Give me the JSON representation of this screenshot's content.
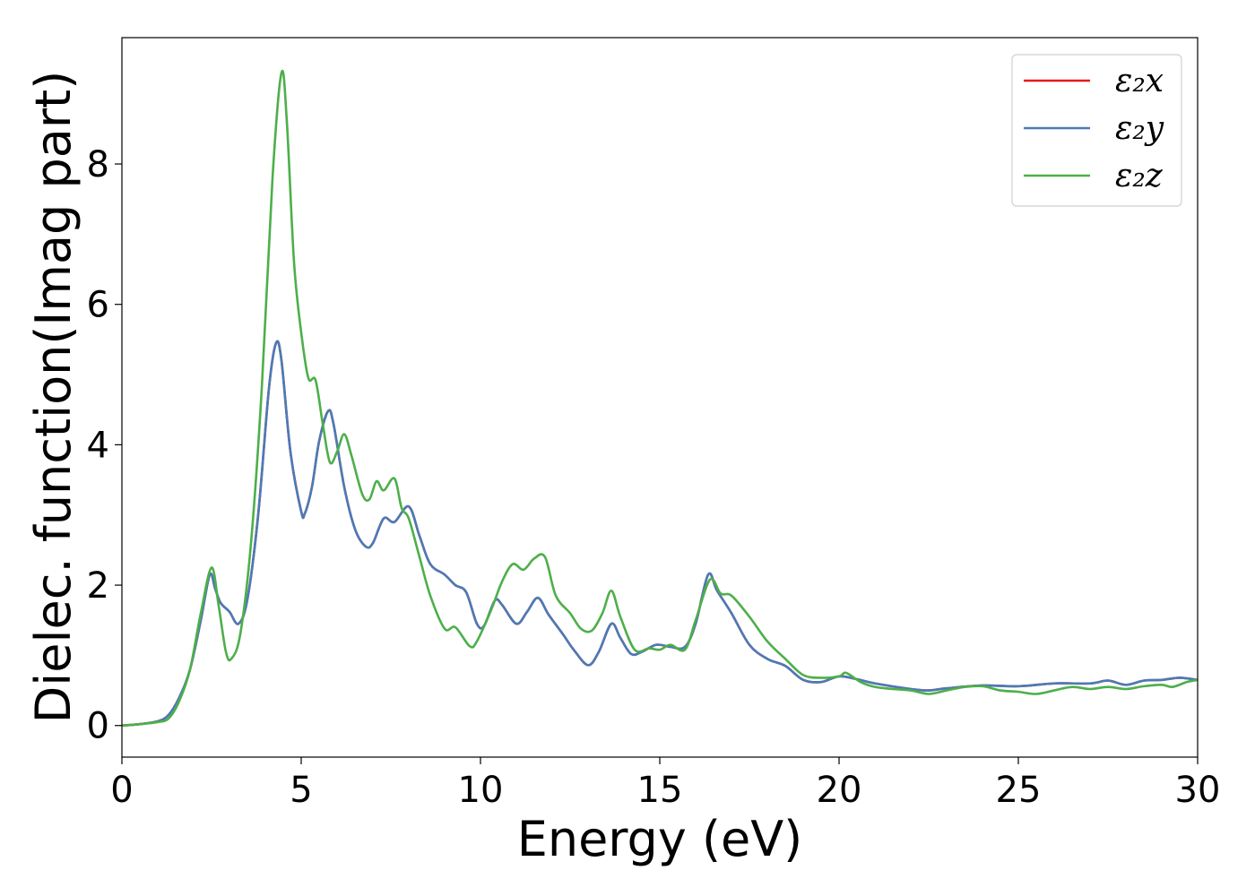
{
  "chart_data": {
    "type": "line",
    "title": "",
    "xlabel": "Energy (eV)",
    "ylabel": "Dielec. function(Imag part)",
    "xlim": [
      0,
      30
    ],
    "ylim": [
      -0.45,
      9.8
    ],
    "xticks": [
      0,
      5,
      10,
      15,
      20,
      25,
      30
    ],
    "yticks": [
      0,
      2,
      4,
      6,
      8
    ],
    "grid": false,
    "legend_position": "top-right",
    "series": [
      {
        "name": "ε₂x",
        "color": "#e41a1c",
        "points": [
          [
            0,
            0
          ],
          [
            0.5,
            0.02
          ],
          [
            1.0,
            0.06
          ],
          [
            1.3,
            0.15
          ],
          [
            1.6,
            0.4
          ],
          [
            1.9,
            0.8
          ],
          [
            2.2,
            1.5
          ],
          [
            2.45,
            2.15
          ],
          [
            2.6,
            1.95
          ],
          [
            2.75,
            1.75
          ],
          [
            3.0,
            1.62
          ],
          [
            3.25,
            1.45
          ],
          [
            3.5,
            1.8
          ],
          [
            3.8,
            3.0
          ],
          [
            4.1,
            4.8
          ],
          [
            4.3,
            5.45
          ],
          [
            4.45,
            5.2
          ],
          [
            4.7,
            3.9
          ],
          [
            5.0,
            3.05
          ],
          [
            5.1,
            3.02
          ],
          [
            5.3,
            3.4
          ],
          [
            5.5,
            4.05
          ],
          [
            5.75,
            4.48
          ],
          [
            5.9,
            4.3
          ],
          [
            6.2,
            3.4
          ],
          [
            6.5,
            2.8
          ],
          [
            6.8,
            2.55
          ],
          [
            7.0,
            2.6
          ],
          [
            7.3,
            2.95
          ],
          [
            7.6,
            2.9
          ],
          [
            8.0,
            3.12
          ],
          [
            8.3,
            2.7
          ],
          [
            8.6,
            2.3
          ],
          [
            9.0,
            2.15
          ],
          [
            9.3,
            2.0
          ],
          [
            9.6,
            1.9
          ],
          [
            9.9,
            1.45
          ],
          [
            10.1,
            1.42
          ],
          [
            10.4,
            1.78
          ],
          [
            10.6,
            1.72
          ],
          [
            11.0,
            1.45
          ],
          [
            11.3,
            1.62
          ],
          [
            11.6,
            1.82
          ],
          [
            11.9,
            1.58
          ],
          [
            12.3,
            1.3
          ],
          [
            12.6,
            1.08
          ],
          [
            13.0,
            0.86
          ],
          [
            13.3,
            1.05
          ],
          [
            13.65,
            1.45
          ],
          [
            13.9,
            1.25
          ],
          [
            14.2,
            1.02
          ],
          [
            14.5,
            1.05
          ],
          [
            14.9,
            1.15
          ],
          [
            15.3,
            1.12
          ],
          [
            15.7,
            1.12
          ],
          [
            16.0,
            1.45
          ],
          [
            16.35,
            2.15
          ],
          [
            16.6,
            1.92
          ],
          [
            17.0,
            1.6
          ],
          [
            17.5,
            1.15
          ],
          [
            18.0,
            0.95
          ],
          [
            18.5,
            0.85
          ],
          [
            19.0,
            0.65
          ],
          [
            19.5,
            0.62
          ],
          [
            20.0,
            0.7
          ],
          [
            20.5,
            0.66
          ],
          [
            21.0,
            0.6
          ],
          [
            22.0,
            0.52
          ],
          [
            22.5,
            0.5
          ],
          [
            23.0,
            0.53
          ],
          [
            24.0,
            0.57
          ],
          [
            25.0,
            0.56
          ],
          [
            26.0,
            0.6
          ],
          [
            27.0,
            0.6
          ],
          [
            27.5,
            0.64
          ],
          [
            28.0,
            0.58
          ],
          [
            28.5,
            0.64
          ],
          [
            29.0,
            0.65
          ],
          [
            29.5,
            0.68
          ],
          [
            30.0,
            0.65
          ]
        ]
      },
      {
        "name": "ε₂y",
        "color": "#4a7bb7",
        "points": [
          [
            0,
            0
          ],
          [
            0.5,
            0.02
          ],
          [
            1.0,
            0.06
          ],
          [
            1.3,
            0.15
          ],
          [
            1.6,
            0.4
          ],
          [
            1.9,
            0.8
          ],
          [
            2.2,
            1.5
          ],
          [
            2.45,
            2.15
          ],
          [
            2.6,
            1.95
          ],
          [
            2.75,
            1.75
          ],
          [
            3.0,
            1.62
          ],
          [
            3.25,
            1.45
          ],
          [
            3.5,
            1.8
          ],
          [
            3.8,
            3.0
          ],
          [
            4.1,
            4.8
          ],
          [
            4.3,
            5.45
          ],
          [
            4.45,
            5.2
          ],
          [
            4.7,
            3.9
          ],
          [
            5.0,
            3.05
          ],
          [
            5.1,
            3.02
          ],
          [
            5.3,
            3.4
          ],
          [
            5.5,
            4.05
          ],
          [
            5.75,
            4.48
          ],
          [
            5.9,
            4.3
          ],
          [
            6.2,
            3.4
          ],
          [
            6.5,
            2.8
          ],
          [
            6.8,
            2.55
          ],
          [
            7.0,
            2.6
          ],
          [
            7.3,
            2.95
          ],
          [
            7.6,
            2.9
          ],
          [
            8.0,
            3.12
          ],
          [
            8.3,
            2.7
          ],
          [
            8.6,
            2.3
          ],
          [
            9.0,
            2.15
          ],
          [
            9.3,
            2.0
          ],
          [
            9.6,
            1.9
          ],
          [
            9.9,
            1.45
          ],
          [
            10.1,
            1.42
          ],
          [
            10.4,
            1.78
          ],
          [
            10.6,
            1.72
          ],
          [
            11.0,
            1.45
          ],
          [
            11.3,
            1.62
          ],
          [
            11.6,
            1.82
          ],
          [
            11.9,
            1.58
          ],
          [
            12.3,
            1.3
          ],
          [
            12.6,
            1.08
          ],
          [
            13.0,
            0.86
          ],
          [
            13.3,
            1.05
          ],
          [
            13.65,
            1.45
          ],
          [
            13.9,
            1.25
          ],
          [
            14.2,
            1.02
          ],
          [
            14.5,
            1.05
          ],
          [
            14.9,
            1.15
          ],
          [
            15.3,
            1.12
          ],
          [
            15.7,
            1.12
          ],
          [
            16.0,
            1.45
          ],
          [
            16.35,
            2.15
          ],
          [
            16.6,
            1.92
          ],
          [
            17.0,
            1.6
          ],
          [
            17.5,
            1.15
          ],
          [
            18.0,
            0.95
          ],
          [
            18.5,
            0.85
          ],
          [
            19.0,
            0.65
          ],
          [
            19.5,
            0.62
          ],
          [
            20.0,
            0.7
          ],
          [
            20.5,
            0.66
          ],
          [
            21.0,
            0.6
          ],
          [
            22.0,
            0.52
          ],
          [
            22.5,
            0.5
          ],
          [
            23.0,
            0.53
          ],
          [
            24.0,
            0.57
          ],
          [
            25.0,
            0.56
          ],
          [
            26.0,
            0.6
          ],
          [
            27.0,
            0.6
          ],
          [
            27.5,
            0.64
          ],
          [
            28.0,
            0.58
          ],
          [
            28.5,
            0.64
          ],
          [
            29.0,
            0.65
          ],
          [
            29.5,
            0.68
          ],
          [
            30.0,
            0.65
          ]
        ]
      },
      {
        "name": "ε₂z",
        "color": "#4daf4a",
        "points": [
          [
            0,
            0
          ],
          [
            0.5,
            0.02
          ],
          [
            1.0,
            0.05
          ],
          [
            1.3,
            0.1
          ],
          [
            1.6,
            0.35
          ],
          [
            1.9,
            0.8
          ],
          [
            2.2,
            1.6
          ],
          [
            2.5,
            2.25
          ],
          [
            2.7,
            1.7
          ],
          [
            2.9,
            1.05
          ],
          [
            3.05,
            0.95
          ],
          [
            3.3,
            1.3
          ],
          [
            3.6,
            2.6
          ],
          [
            3.9,
            4.8
          ],
          [
            4.2,
            7.8
          ],
          [
            4.45,
            9.3
          ],
          [
            4.6,
            8.6
          ],
          [
            4.8,
            6.6
          ],
          [
            5.0,
            5.6
          ],
          [
            5.2,
            4.95
          ],
          [
            5.4,
            4.92
          ],
          [
            5.6,
            4.3
          ],
          [
            5.8,
            3.75
          ],
          [
            6.0,
            3.9
          ],
          [
            6.2,
            4.15
          ],
          [
            6.4,
            3.85
          ],
          [
            6.7,
            3.3
          ],
          [
            6.9,
            3.22
          ],
          [
            7.1,
            3.48
          ],
          [
            7.3,
            3.35
          ],
          [
            7.6,
            3.52
          ],
          [
            7.8,
            3.1
          ],
          [
            8.0,
            2.95
          ],
          [
            8.3,
            2.4
          ],
          [
            8.6,
            1.85
          ],
          [
            9.0,
            1.38
          ],
          [
            9.3,
            1.4
          ],
          [
            9.7,
            1.13
          ],
          [
            9.9,
            1.2
          ],
          [
            10.3,
            1.65
          ],
          [
            10.6,
            2.05
          ],
          [
            10.9,
            2.3
          ],
          [
            11.2,
            2.22
          ],
          [
            11.5,
            2.38
          ],
          [
            11.8,
            2.4
          ],
          [
            12.1,
            1.85
          ],
          [
            12.5,
            1.6
          ],
          [
            12.8,
            1.38
          ],
          [
            13.1,
            1.35
          ],
          [
            13.4,
            1.6
          ],
          [
            13.65,
            1.92
          ],
          [
            13.9,
            1.55
          ],
          [
            14.3,
            1.08
          ],
          [
            14.7,
            1.1
          ],
          [
            15.0,
            1.08
          ],
          [
            15.3,
            1.15
          ],
          [
            15.7,
            1.08
          ],
          [
            16.0,
            1.5
          ],
          [
            16.4,
            2.08
          ],
          [
            16.7,
            1.88
          ],
          [
            17.0,
            1.85
          ],
          [
            17.5,
            1.55
          ],
          [
            18.0,
            1.2
          ],
          [
            18.5,
            0.95
          ],
          [
            19.0,
            0.72
          ],
          [
            19.5,
            0.68
          ],
          [
            20.0,
            0.7
          ],
          [
            20.2,
            0.75
          ],
          [
            20.6,
            0.62
          ],
          [
            21.0,
            0.55
          ],
          [
            21.5,
            0.52
          ],
          [
            22.0,
            0.5
          ],
          [
            22.5,
            0.45
          ],
          [
            23.0,
            0.5
          ],
          [
            23.5,
            0.55
          ],
          [
            24.0,
            0.56
          ],
          [
            24.5,
            0.5
          ],
          [
            25.0,
            0.48
          ],
          [
            25.5,
            0.45
          ],
          [
            26.0,
            0.5
          ],
          [
            26.5,
            0.55
          ],
          [
            27.0,
            0.52
          ],
          [
            27.5,
            0.55
          ],
          [
            28.0,
            0.52
          ],
          [
            28.5,
            0.56
          ],
          [
            29.0,
            0.58
          ],
          [
            29.3,
            0.55
          ],
          [
            29.7,
            0.62
          ],
          [
            30.0,
            0.65
          ]
        ]
      }
    ]
  }
}
